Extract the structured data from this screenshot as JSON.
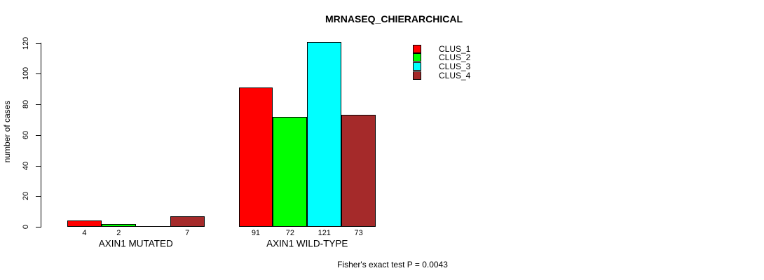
{
  "chart_data": {
    "type": "bar",
    "title": "MRNASEQ_CHIERARCHICAL",
    "ylabel": "number of cases",
    "xlabel": "",
    "ylim": [
      0,
      120
    ],
    "yticks": [
      0,
      20,
      40,
      60,
      80,
      100,
      120
    ],
    "grid": false,
    "legend_position": "top-right",
    "categories": [
      "AXIN1 MUTATED",
      "AXIN1 WILD-TYPE"
    ],
    "series": [
      {
        "name": "CLUS_1",
        "color": "#ff0000",
        "values": [
          4,
          91
        ]
      },
      {
        "name": "CLUS_2",
        "color": "#00ff00",
        "values": [
          2,
          72
        ]
      },
      {
        "name": "CLUS_3",
        "color": "#00ffff",
        "values": [
          0,
          121
        ]
      },
      {
        "name": "CLUS_4",
        "color": "#a52a2a",
        "values": [
          7,
          73
        ]
      }
    ],
    "bar_value_labels": [
      [
        "4",
        "2",
        "",
        "7"
      ],
      [
        "91",
        "72",
        "121",
        "73"
      ]
    ],
    "annotation": "Fisher's exact test P = 0.0043",
    "bar_border_color": "#000000",
    "axis_color": "#000000"
  }
}
